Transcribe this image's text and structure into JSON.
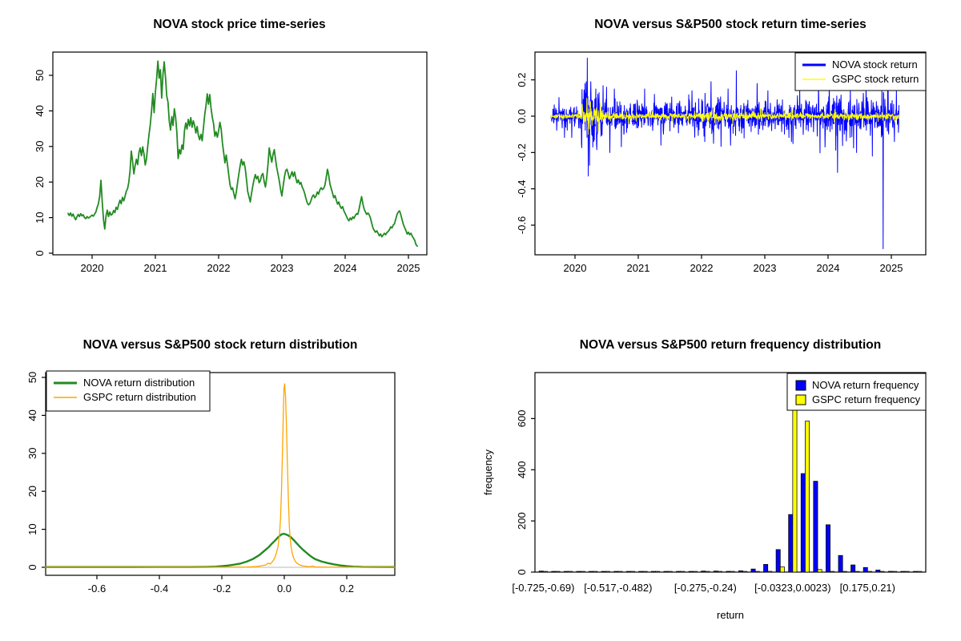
{
  "canvas": {
    "background": "#FFFFFF"
  },
  "colors": {
    "nova_green": "#228B22",
    "nova_blue": "#0000FF",
    "gspc_yellow": "#FFFF00",
    "gspc_orange": "#FFA500",
    "axis": "#000000",
    "zero_line": "#C8C8C8"
  },
  "chart_data": [
    {
      "id": "price",
      "type": "line",
      "title": "NOVA stock price time-series",
      "x_ticks": [
        {
          "v": 2020,
          "label": "2020"
        },
        {
          "v": 2021,
          "label": "2021"
        },
        {
          "v": 2022,
          "label": "2022"
        },
        {
          "v": 2023,
          "label": "2023"
        },
        {
          "v": 2024,
          "label": "2024"
        },
        {
          "v": 2025,
          "label": "2025"
        }
      ],
      "y_ticks": [
        {
          "v": 0,
          "label": "0"
        },
        {
          "v": 10,
          "label": "10"
        },
        {
          "v": 20,
          "label": "20"
        },
        {
          "v": 30,
          "label": "30"
        },
        {
          "v": 40,
          "label": "40"
        },
        {
          "v": 50,
          "label": "50"
        }
      ],
      "ylim": [
        0,
        56
      ],
      "series": [
        {
          "name": "NOVA stock price",
          "color": "#228B22",
          "line_width": 1.8,
          "x_start": 2019.62,
          "x_step": 0.02,
          "values": [
            11.2,
            10.6,
            11.3,
            10.4,
            11.0,
            10.1,
            9.4,
            10.2,
            10.9,
            10.3,
            11.1,
            10.5,
            10.8,
            10.0,
            9.7,
            10.3,
            9.9,
            10.1,
            10.4,
            10.7,
            10.4,
            11.0,
            11.6,
            12.9,
            13.9,
            16.0,
            20.5,
            14.5,
            9.5,
            6.8,
            10.5,
            12.1,
            10.3,
            11.6,
            10.7,
            11.0,
            12.0,
            11.4,
            12.9,
            12.3,
            13.7,
            14.9,
            13.9,
            15.7,
            14.7,
            15.9,
            17.4,
            18.1,
            19.9,
            23.2,
            28.7,
            25.8,
            22.3,
            24.6,
            26.4,
            24.9,
            28.2,
            29.6,
            27.4,
            29.9,
            27.9,
            24.8,
            26.6,
            30.2,
            33.4,
            36.2,
            40.1,
            44.9,
            39.5,
            45.2,
            49.0,
            54.0,
            49.2,
            51.6,
            43.6,
            50.2,
            53.8,
            49.5,
            44.2,
            42.4,
            37.1,
            34.6,
            38.4,
            35.9,
            40.6,
            38.2,
            33.9,
            26.6,
            29.1,
            27.9,
            30.4,
            29.2,
            34.4,
            36.6,
            34.9,
            37.6,
            35.8,
            38.1,
            35.4,
            37.2,
            35.9,
            33.8,
            35.6,
            33.1,
            31.9,
            33.4,
            31.6,
            35.2,
            38.9,
            41.4,
            44.8,
            41.9,
            44.6,
            40.8,
            38.2,
            36.4,
            32.9,
            34.1,
            32.6,
            34.4,
            36.8,
            34.9,
            31.0,
            28.2,
            25.4,
            27.6,
            24.9,
            22.0,
            19.2,
            17.9,
            18.4,
            16.8,
            15.3,
            17.2,
            19.9,
            22.3,
            24.6,
            26.4,
            24.8,
            25.7,
            23.9,
            20.8,
            17.3,
            15.9,
            14.4,
            16.8,
            18.9,
            20.7,
            22.1,
            20.9,
            21.6,
            19.8,
            20.4,
            21.9,
            22.4,
            20.1,
            18.6,
            21.2,
            24.9,
            29.6,
            27.4,
            25.6,
            27.8,
            29.1,
            26.3,
            23.9,
            22.1,
            20.2,
            17.8,
            16.1,
            18.9,
            21.4,
            23.2,
            23.6,
            22.4,
            20.9,
            21.8,
            22.9,
            21.6,
            22.8,
            21.1,
            19.8,
            20.6,
            19.4,
            19.9,
            18.6,
            17.9,
            16.8,
            15.4,
            14.2,
            13.6,
            13.9,
            14.8,
            15.9,
            16.4,
            15.6,
            16.1,
            17.2,
            16.6,
            17.8,
            18.4,
            17.9,
            18.2,
            19.1,
            21.2,
            23.6,
            21.9,
            19.4,
            18.2,
            16.9,
            15.6,
            16.2,
            14.9,
            13.8,
            14.4,
            13.2,
            12.6,
            13.1,
            11.9,
            11.2,
            10.4,
            9.6,
            9.1,
            9.9,
            9.4,
            10.2,
            9.8,
            10.6,
            11.1,
            10.9,
            12.4,
            14.2,
            15.9,
            13.9,
            12.4,
            11.6,
            10.9,
            11.3,
            10.8,
            9.9,
            8.4,
            7.1,
            6.4,
            5.9,
            6.3,
            5.6,
            4.9,
            5.4,
            4.6,
            5.1,
            5.6,
            5.2,
            5.8,
            6.1,
            6.6,
            7.4,
            7.1,
            7.9,
            8.3,
            9.6,
            10.9,
            11.6,
            11.9,
            10.8,
            9.4,
            8.1,
            7.2,
            6.4,
            5.4,
            5.9,
            5.2,
            5.6,
            4.8,
            4.2,
            3.6,
            2.4,
            2.0
          ]
        }
      ]
    },
    {
      "id": "returns",
      "type": "noise-line",
      "title": "NOVA versus S&P500 stock return time-series",
      "x_ticks": [
        {
          "v": 2020,
          "label": "2020"
        },
        {
          "v": 2021,
          "label": "2021"
        },
        {
          "v": 2022,
          "label": "2022"
        },
        {
          "v": 2023,
          "label": "2023"
        },
        {
          "v": 2024,
          "label": "2024"
        },
        {
          "v": 2025,
          "label": "2025"
        }
      ],
      "y_ticks": [
        {
          "v": 0.2,
          "label": "0.2"
        },
        {
          "v": 0.0,
          "label": "0.0"
        },
        {
          "v": -0.2,
          "label": "-0.2"
        },
        {
          "v": -0.4,
          "label": "-0.4"
        },
        {
          "v": -0.6,
          "label": "-0.6"
        }
      ],
      "ylim": [
        -0.77,
        0.36
      ],
      "n": 1390,
      "x_start": 2019.62,
      "x_end": 2025.12,
      "seed": 1234,
      "series": [
        {
          "name": "NOVA stock return",
          "color": "#0000FF",
          "line_width": 1.0,
          "clamp": 0.33,
          "sigma_segments": [
            [
              2019.62,
              0.028
            ],
            [
              2020.1,
              0.07
            ],
            [
              2020.42,
              0.04
            ],
            [
              2021.0,
              0.034
            ],
            [
              2022.0,
              0.042
            ],
            [
              2023.0,
              0.036
            ],
            [
              2023.7,
              0.048
            ],
            [
              2024.55,
              0.055
            ]
          ],
          "spikes": [
            [
              2020.16,
              0.18
            ],
            [
              2020.195,
              0.32
            ],
            [
              2020.21,
              -0.33
            ],
            [
              2020.23,
              -0.27
            ],
            [
              2020.25,
              0.19
            ],
            [
              2020.28,
              -0.17
            ],
            [
              2020.33,
              0.15
            ],
            [
              2020.5,
              0.16
            ],
            [
              2020.55,
              -0.2
            ],
            [
              2020.62,
              0.15
            ],
            [
              2021.1,
              0.15
            ],
            [
              2021.36,
              -0.16
            ],
            [
              2021.85,
              0.14
            ],
            [
              2022.05,
              -0.14
            ],
            [
              2022.15,
              0.19
            ],
            [
              2022.19,
              -0.15
            ],
            [
              2022.42,
              0.15
            ],
            [
              2022.46,
              -0.16
            ],
            [
              2022.55,
              0.25
            ],
            [
              2022.88,
              0.18
            ],
            [
              2023.05,
              0.14
            ],
            [
              2023.42,
              -0.14
            ],
            [
              2023.55,
              0.15
            ],
            [
              2023.85,
              0.2
            ],
            [
              2023.95,
              -0.17
            ],
            [
              2024.02,
              0.21
            ],
            [
              2024.15,
              -0.31
            ],
            [
              2024.35,
              0.17
            ],
            [
              2024.45,
              -0.2
            ],
            [
              2024.6,
              0.19
            ],
            [
              2024.7,
              -0.22
            ],
            [
              2024.87,
              -0.73
            ],
            [
              2024.95,
              0.16
            ],
            [
              2025.05,
              -0.14
            ],
            [
              2025.08,
              0.15
            ]
          ]
        },
        {
          "name": "GSPC stock return",
          "color": "#FFFF00",
          "line_width": 0.9,
          "clamp": 0.1,
          "sigma_segments": [
            [
              2019.62,
              0.007
            ],
            [
              2020.1,
              0.026
            ],
            [
              2020.42,
              0.011
            ],
            [
              2021.0,
              0.008
            ],
            [
              2022.0,
              0.012
            ],
            [
              2023.0,
              0.008
            ],
            [
              2024.0,
              0.009
            ]
          ],
          "spikes": [
            [
              2020.19,
              0.093
            ],
            [
              2020.205,
              -0.1
            ],
            [
              2020.225,
              -0.07
            ],
            [
              2020.245,
              0.08
            ],
            [
              2020.27,
              -0.05
            ],
            [
              2022.35,
              -0.035
            ],
            [
              2022.6,
              0.04
            ]
          ]
        }
      ],
      "legend": {
        "position": "topright",
        "entries": [
          {
            "label": "NOVA stock return",
            "color": "#0000FF",
            "sample": "line",
            "line_width": 3
          },
          {
            "label": "GSPC stock return",
            "color": "#FFFF00",
            "sample": "line",
            "line_width": 1.5
          }
        ]
      }
    },
    {
      "id": "density",
      "type": "line",
      "title": "NOVA versus S&P500 stock return distribution",
      "x_ticks": [
        {
          "v": -0.6,
          "label": "-0.6"
        },
        {
          "v": -0.4,
          "label": "-0.4"
        },
        {
          "v": -0.2,
          "label": "-0.2"
        },
        {
          "v": 0.0,
          "label": "0.0"
        },
        {
          "v": 0.2,
          "label": "0.2"
        }
      ],
      "y_ticks": [
        {
          "v": 0,
          "label": "0"
        },
        {
          "v": 10,
          "label": "10"
        },
        {
          "v": 20,
          "label": "20"
        },
        {
          "v": 30,
          "label": "30"
        },
        {
          "v": 40,
          "label": "40"
        },
        {
          "v": 50,
          "label": "50"
        }
      ],
      "ylim": [
        0,
        51
      ],
      "zero_line_color": "#C8C8C8",
      "series": [
        {
          "name": "NOVA return distribution",
          "color": "#228B22",
          "line_width": 2.4,
          "points_flat": [
            -0.764,
            0.05,
            -0.7,
            0.05,
            -0.6,
            0.05,
            -0.5,
            0.05,
            -0.4,
            0.06,
            -0.3,
            0.07,
            -0.25,
            0.1,
            -0.22,
            0.16,
            -0.2,
            0.3,
            -0.18,
            0.45,
            -0.16,
            0.7,
            -0.14,
            1.0,
            -0.12,
            1.5,
            -0.1,
            2.2,
            -0.08,
            3.2,
            -0.06,
            4.6,
            -0.05,
            5.3,
            -0.04,
            6.2,
            -0.03,
            7.0,
            -0.02,
            7.9,
            -0.01,
            8.6,
            -0.005,
            8.8,
            0,
            8.8,
            0.01,
            8.5,
            0.02,
            8.0,
            0.03,
            7.2,
            0.04,
            6.3,
            0.05,
            5.4,
            0.06,
            4.6,
            0.07,
            3.9,
            0.08,
            3.2,
            0.09,
            2.6,
            0.1,
            2.1,
            0.12,
            1.5,
            0.14,
            1.1,
            0.16,
            0.75,
            0.18,
            0.5,
            0.2,
            0.3,
            0.22,
            0.18,
            0.25,
            0.1,
            0.3,
            0.06,
            0.354,
            0.05
          ]
        },
        {
          "name": "GSPC return distribution",
          "color": "#FFA500",
          "line_width": 1.3,
          "points_flat": [
            -0.764,
            0.02,
            -0.4,
            0.02,
            -0.3,
            0.02,
            -0.2,
            0.03,
            -0.15,
            0.05,
            -0.12,
            0.08,
            -0.1,
            0.15,
            -0.09,
            0.2,
            -0.08,
            0.3,
            -0.07,
            0.45,
            -0.06,
            0.6,
            -0.055,
            0.9,
            -0.05,
            1.1,
            -0.045,
            0.85,
            -0.04,
            1.3,
            -0.035,
            1.8,
            -0.03,
            2.6,
            -0.025,
            3.8,
            -0.02,
            5.5,
            -0.015,
            9,
            -0.012,
            13,
            -0.009,
            20,
            -0.006,
            30,
            -0.003,
            41,
            -0.001,
            47,
            0.001,
            48.3,
            0.004,
            45,
            0.007,
            37,
            0.01,
            27,
            0.013,
            18,
            0.016,
            11,
            0.02,
            6.5,
            0.025,
            3.8,
            0.03,
            2.4,
            0.035,
            1.6,
            0.04,
            1.1,
            0.05,
            0.6,
            0.06,
            0.35,
            0.07,
            0.25,
            0.08,
            0.15,
            0.09,
            0.3,
            0.095,
            0.2,
            0.1,
            0.1,
            0.12,
            0.05,
            0.15,
            0.03,
            0.2,
            0.02,
            0.354,
            0.02
          ]
        }
      ],
      "legend": {
        "position": "topleft",
        "entries": [
          {
            "label": "NOVA return distribution",
            "color": "#228B22",
            "sample": "line",
            "line_width": 3
          },
          {
            "label": "GSPC return distribution",
            "color": "#FFA500",
            "sample": "line",
            "line_width": 1.5
          }
        ]
      }
    },
    {
      "id": "freq",
      "type": "bar",
      "title": "NOVA versus S&P500 return frequency distribution",
      "xlabel": "return",
      "ylabel": "frequency",
      "y_ticks": [
        {
          "v": 0,
          "label": "0"
        },
        {
          "v": 200,
          "label": "200"
        },
        {
          "v": 400,
          "label": "400"
        },
        {
          "v": 600,
          "label": "600"
        }
      ],
      "ylim": [
        0,
        780
      ],
      "bins": 31,
      "bin_start": -0.725,
      "bin_width": 0.0346,
      "x_labels": [
        {
          "bin": 0,
          "label": "[-0.725,-0.69)"
        },
        {
          "bin": 6,
          "label": "[-0.517,-0.482)"
        },
        {
          "bin": 13,
          "label": "[-0.275,-0.24)"
        },
        {
          "bin": 20,
          "label": "[-0.0323,0.0023)"
        },
        {
          "bin": 26,
          "label": "[0.175,0.21)"
        }
      ],
      "series": [
        {
          "name": "NOVA return frequency",
          "color": "#0000FF",
          "values": [
            4,
            1,
            1,
            1,
            2,
            1,
            1,
            2,
            1,
            2,
            1,
            2,
            2,
            4,
            4,
            3,
            5,
            12,
            30,
            88,
            225,
            385,
            355,
            185,
            65,
            28,
            18,
            8,
            3,
            2,
            2
          ]
        },
        {
          "name": "GSPC return frequency",
          "color": "#FFFF00",
          "values": [
            1,
            0,
            0,
            0,
            0,
            0,
            0,
            0,
            0,
            0,
            0,
            0,
            1,
            1,
            0,
            1,
            1,
            2,
            3,
            20,
            740,
            590,
            10,
            2,
            1,
            0,
            0,
            0,
            0,
            0,
            0
          ]
        }
      ],
      "legend": {
        "position": "topright",
        "entries": [
          {
            "label": "NOVA return frequency",
            "color": "#0000FF",
            "sample": "box"
          },
          {
            "label": "GSPC return frequency",
            "color": "#FFFF00",
            "sample": "box"
          }
        ]
      }
    }
  ]
}
